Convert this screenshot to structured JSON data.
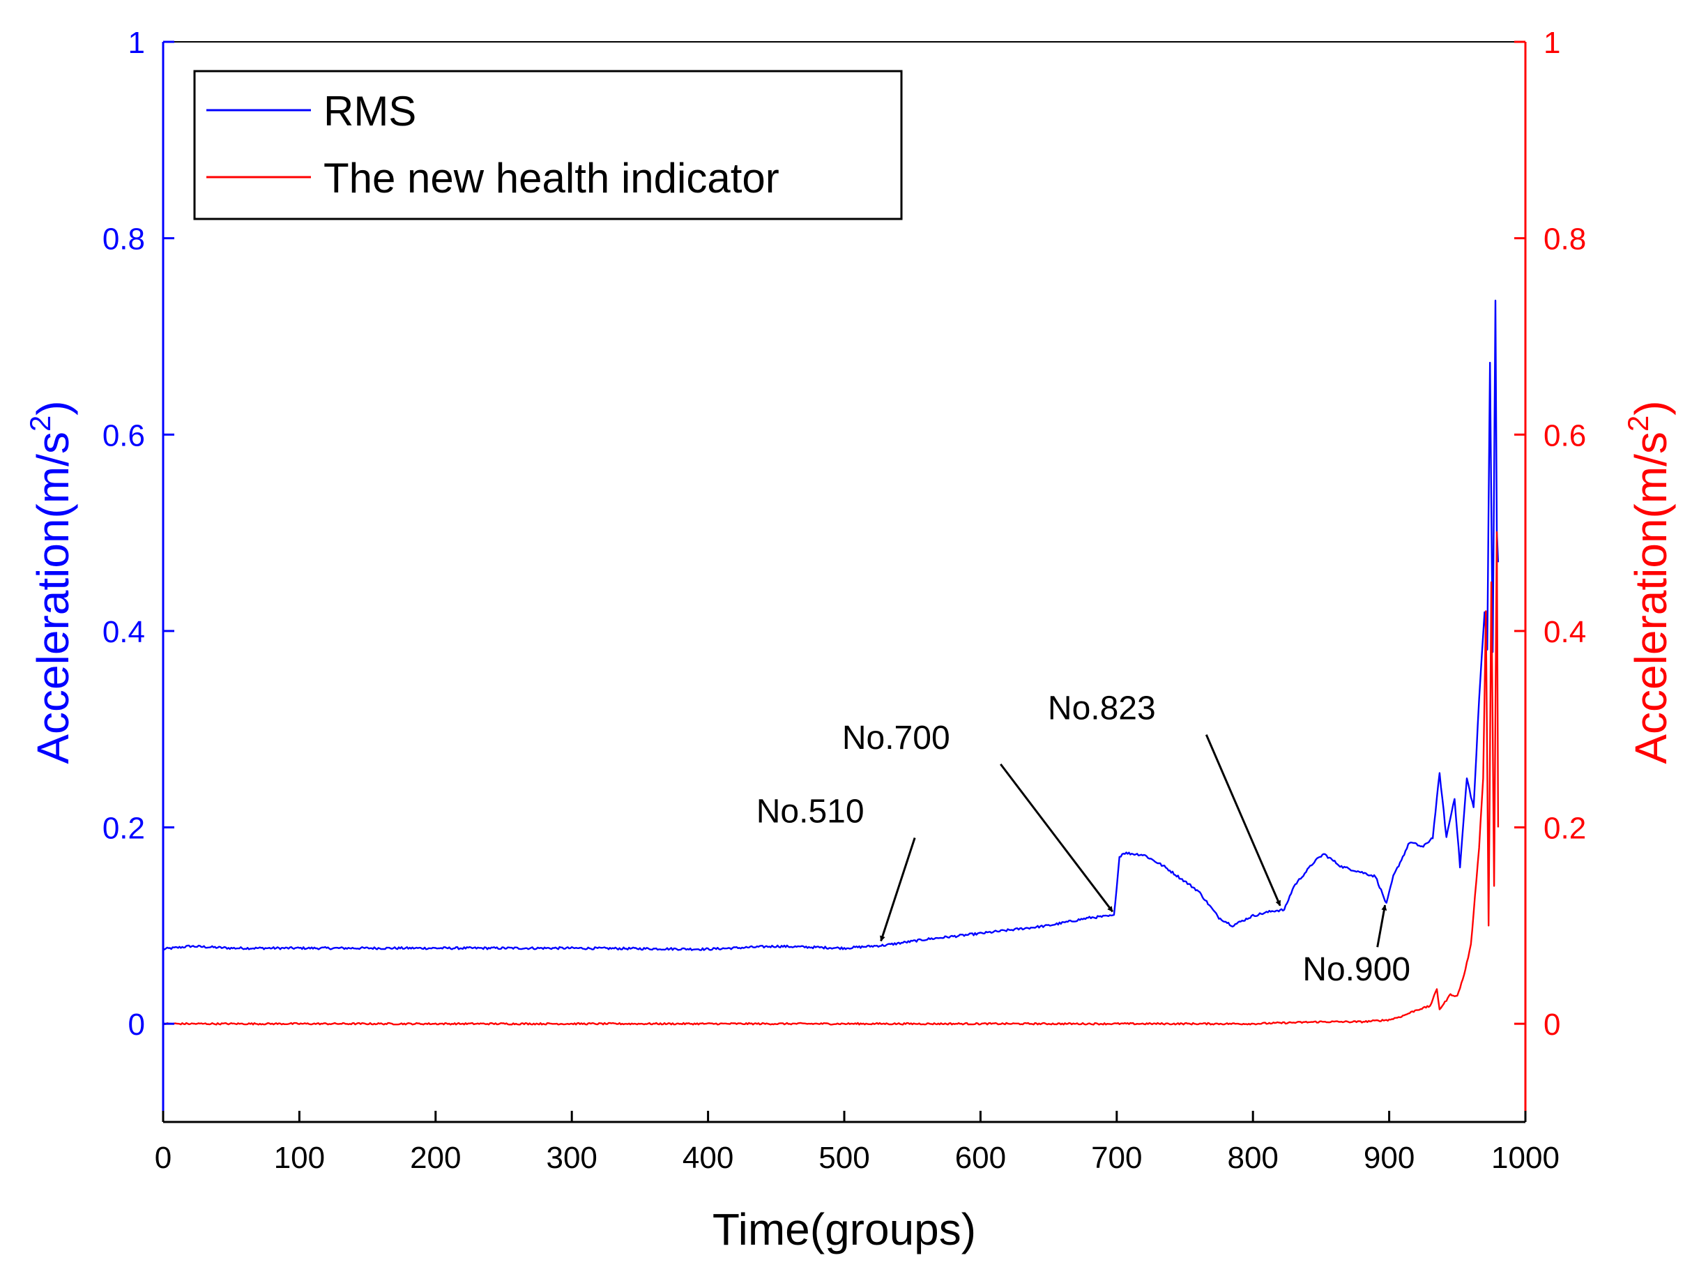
{
  "colors": {
    "rms": "#0000ff",
    "hi": "#ff0000",
    "axis_left": "#0000ff",
    "axis_right": "#ff0000",
    "axis_bottom": "#000000",
    "annotation": "#000000"
  },
  "chart_data": {
    "type": "line",
    "xlabel": "Time(groups)",
    "ylabel_left": "Acceleration(m/s",
    "ylabel_right": "Acceleration(m/s",
    "ylabel_superscript": "2",
    "ylabel_close": ")",
    "xlim": [
      0,
      1000
    ],
    "ylim_left": [
      -0.1,
      1
    ],
    "ylim_right": [
      -0.1,
      1
    ],
    "x_ticks": [
      0,
      100,
      200,
      300,
      400,
      500,
      600,
      700,
      800,
      900,
      1000
    ],
    "y_ticks_left": [
      0,
      0.2,
      0.4,
      0.6,
      0.8,
      1
    ],
    "y_ticks_right": [
      0,
      0.2,
      0.4,
      0.6,
      0.8,
      1
    ],
    "legend_position": "top-left",
    "series": [
      {
        "name": "RMS",
        "axis": "left",
        "x": [
          0,
          20,
          50,
          100,
          200,
          300,
          400,
          450,
          500,
          510,
          530,
          560,
          600,
          650,
          680,
          698,
          702,
          705,
          720,
          735,
          745,
          760,
          775,
          785,
          800,
          815,
          823,
          830,
          845,
          852,
          865,
          878,
          890,
          898,
          903,
          910,
          915,
          925,
          932,
          937,
          942,
          948,
          952,
          957,
          962,
          966,
          970,
          972,
          974,
          976,
          978,
          979,
          980
        ],
        "values": [
          0.076,
          0.079,
          0.077,
          0.077,
          0.077,
          0.077,
          0.076,
          0.079,
          0.077,
          0.078,
          0.08,
          0.086,
          0.092,
          0.1,
          0.108,
          0.11,
          0.17,
          0.174,
          0.172,
          0.16,
          0.15,
          0.135,
          0.108,
          0.1,
          0.11,
          0.115,
          0.116,
          0.14,
          0.165,
          0.173,
          0.16,
          0.155,
          0.15,
          0.122,
          0.15,
          0.17,
          0.185,
          0.18,
          0.19,
          0.255,
          0.19,
          0.23,
          0.16,
          0.25,
          0.22,
          0.33,
          0.42,
          0.38,
          0.675,
          0.38,
          0.735,
          0.5,
          0.47
        ]
      },
      {
        "name": "The new health indicator",
        "axis": "right",
        "x": [
          0,
          100,
          200,
          300,
          400,
          500,
          600,
          700,
          800,
          850,
          880,
          900,
          910,
          920,
          930,
          935,
          937,
          940,
          945,
          950,
          955,
          960,
          963,
          966,
          969,
          971,
          973,
          975,
          977,
          979,
          980
        ],
        "values": [
          0.0,
          0.0,
          0.0,
          0.0,
          0.0,
          0.0,
          0.0,
          0.0,
          0.0,
          0.002,
          0.002,
          0.004,
          0.008,
          0.014,
          0.018,
          0.035,
          0.015,
          0.02,
          0.03,
          0.028,
          0.05,
          0.08,
          0.13,
          0.18,
          0.25,
          0.42,
          0.1,
          0.45,
          0.14,
          0.5,
          0.2
        ]
      }
    ],
    "annotations": [
      {
        "text": "No.510",
        "point": [
          530,
          0.08
        ],
        "label_pos": [
          475,
          0.205
        ]
      },
      {
        "text": "No.700",
        "point": [
          700,
          0.11
        ],
        "label_pos": [
          538,
          0.28
        ]
      },
      {
        "text": "No.823",
        "point": [
          823,
          0.116
        ],
        "label_pos": [
          689,
          0.31
        ]
      },
      {
        "text": "No.900",
        "point": [
          900,
          0.125
        ],
        "label_pos": [
          876,
          0.044
        ]
      }
    ]
  }
}
